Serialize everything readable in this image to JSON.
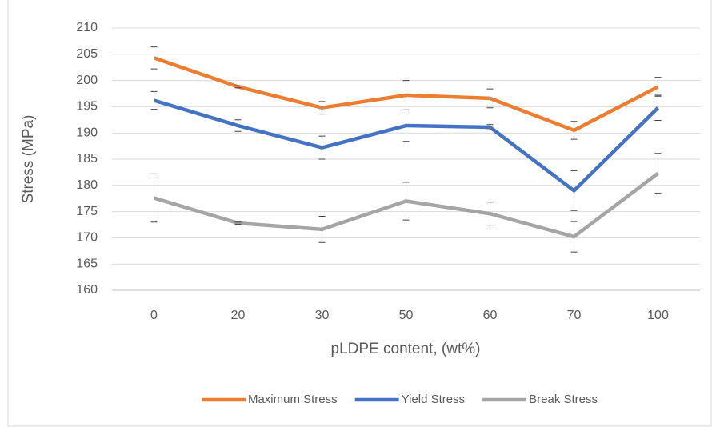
{
  "chart_data": {
    "type": "line",
    "categories": [
      "0",
      "20",
      "30",
      "50",
      "60",
      "70",
      "100"
    ],
    "series": [
      {
        "name": "Maximum Stress",
        "color": "#ED7D31",
        "values": [
          204.3,
          198.8,
          194.8,
          197.2,
          196.6,
          190.5,
          198.8
        ],
        "errors": [
          2.1,
          0.2,
          1.2,
          2.8,
          1.8,
          1.7,
          1.8
        ]
      },
      {
        "name": "Yield Stress",
        "color": "#4472C4",
        "values": [
          196.2,
          191.4,
          187.2,
          191.4,
          191.1,
          179.0,
          194.8
        ],
        "errors": [
          1.7,
          1.1,
          2.2,
          3.0,
          0.5,
          3.8,
          2.4
        ]
      },
      {
        "name": "Break Stress",
        "color": "#A5A5A5",
        "values": [
          177.6,
          172.8,
          171.6,
          177.0,
          174.6,
          170.2,
          182.3
        ],
        "errors": [
          4.6,
          0.2,
          2.5,
          3.6,
          2.2,
          2.9,
          3.8
        ]
      }
    ],
    "xlabel": "pLDPE content, (wt%)",
    "ylabel": "Stress (MPa)",
    "ylim": [
      160,
      210
    ],
    "yticks": [
      160,
      165,
      170,
      175,
      180,
      185,
      190,
      195,
      200,
      205,
      210
    ],
    "grid": true,
    "legend": "bottom"
  }
}
